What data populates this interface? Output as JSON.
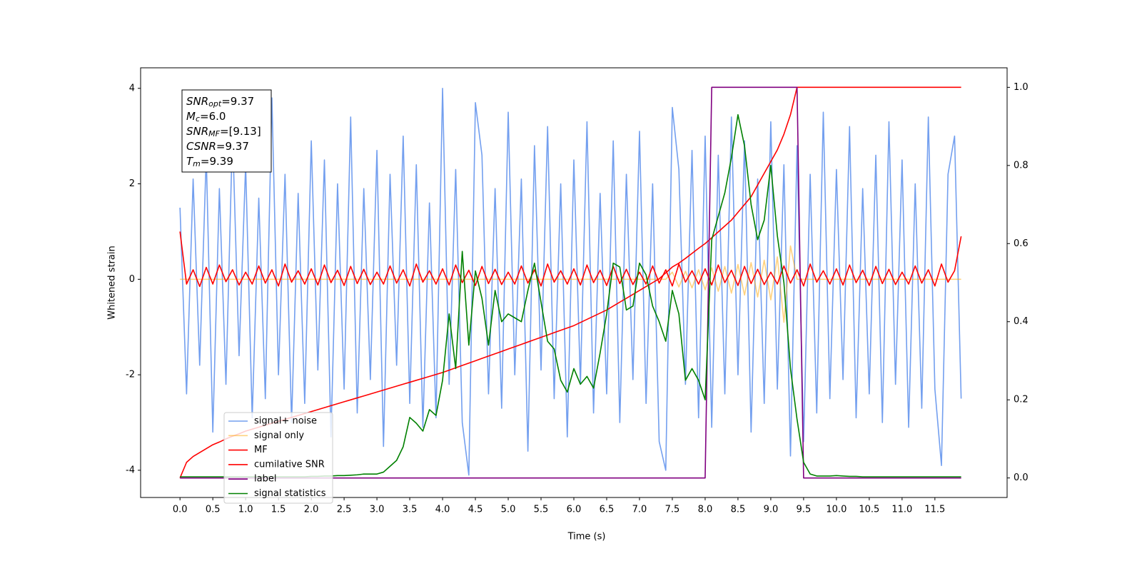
{
  "chart_data": {
    "type": "line",
    "xlabel": "Time (s)",
    "ylabel": "Whitened strain",
    "x": [
      0.0,
      0.1,
      0.2,
      0.3,
      0.4,
      0.5,
      0.6,
      0.7,
      0.8,
      0.9,
      1.0,
      1.1,
      1.2,
      1.3,
      1.4,
      1.5,
      1.6,
      1.7,
      1.8,
      1.9,
      2.0,
      2.1,
      2.2,
      2.3,
      2.4,
      2.5,
      2.6,
      2.7,
      2.8,
      2.9,
      3.0,
      3.1,
      3.2,
      3.3,
      3.4,
      3.5,
      3.6,
      3.7,
      3.8,
      3.9,
      4.0,
      4.1,
      4.2,
      4.3,
      4.4,
      4.5,
      4.6,
      4.7,
      4.8,
      4.9,
      5.0,
      5.1,
      5.2,
      5.3,
      5.4,
      5.5,
      5.6,
      5.7,
      5.8,
      5.9,
      6.0,
      6.1,
      6.2,
      6.3,
      6.4,
      6.5,
      6.6,
      6.7,
      6.8,
      6.9,
      7.0,
      7.1,
      7.2,
      7.3,
      7.4,
      7.5,
      7.6,
      7.7,
      7.8,
      7.9,
      8.0,
      8.1,
      8.2,
      8.3,
      8.4,
      8.5,
      8.6,
      8.7,
      8.8,
      8.9,
      9.0,
      9.1,
      9.2,
      9.3,
      9.4,
      9.5,
      9.6,
      9.7,
      9.8,
      9.9,
      10.0,
      10.1,
      10.2,
      10.3,
      10.4,
      10.5,
      10.6,
      10.7,
      10.8,
      10.9,
      11.0,
      11.1,
      11.2,
      11.3,
      11.4,
      11.5,
      11.6,
      11.7,
      11.8,
      11.9
    ],
    "series": [
      {
        "name": "signal+ noise",
        "color": "#6495ed",
        "alpha": 0.9,
        "values": [
          1.5,
          -2.4,
          2.1,
          -1.8,
          2.6,
          -3.2,
          1.9,
          -2.2,
          3.1,
          -1.6,
          2.4,
          -2.9,
          1.7,
          -2.5,
          3.8,
          -2.0,
          2.2,
          -3.0,
          1.8,
          -2.6,
          2.9,
          -1.9,
          2.5,
          -3.3,
          2.0,
          -2.3,
          3.4,
          -2.8,
          1.9,
          -2.1,
          2.7,
          -3.5,
          2.2,
          -1.8,
          3.0,
          -2.6,
          2.4,
          -3.1,
          1.6,
          -2.9,
          4.0,
          -2.2,
          2.3,
          -3.0,
          -4.1,
          3.7,
          2.6,
          -2.4,
          1.9,
          -2.7,
          3.5,
          -2.0,
          2.1,
          -3.6,
          2.8,
          -1.9,
          3.2,
          -2.5,
          2.0,
          -3.3,
          2.5,
          -2.2,
          3.3,
          -2.8,
          1.8,
          -2.4,
          2.9,
          -3.0,
          2.2,
          -2.1,
          3.1,
          -2.6,
          2.0,
          -3.4,
          -4.0,
          3.6,
          2.3,
          -2.2,
          2.7,
          -2.9,
          3.0,
          -3.1,
          2.6,
          -2.4,
          3.4,
          -2.0,
          2.9,
          -3.2,
          2.1,
          -2.6,
          3.3,
          -2.3,
          2.4,
          -3.7,
          2.8,
          -3.4,
          2.2,
          -2.8,
          3.5,
          -2.5,
          2.3,
          -2.1,
          3.2,
          -2.9,
          1.9,
          -2.4,
          2.6,
          -3.0,
          3.3,
          -2.2,
          2.5,
          -3.1,
          2.0,
          -2.7,
          3.4,
          -2.3,
          -3.9,
          2.2,
          3.0,
          -2.5
        ]
      },
      {
        "name": "signal only",
        "color": "#ffa500",
        "alpha": 0.5,
        "values": [
          0,
          0,
          0,
          0,
          0,
          0,
          0,
          0,
          0,
          0,
          0,
          0,
          0,
          0,
          0,
          0,
          0,
          0,
          0,
          0,
          0,
          0,
          0,
          0,
          0,
          0,
          0,
          0,
          0,
          0,
          0,
          0,
          0,
          0,
          0,
          0,
          0,
          0,
          0,
          0,
          0,
          0,
          0,
          0,
          0,
          0,
          0,
          0,
          0,
          0,
          0,
          0,
          0,
          0,
          0,
          0,
          0,
          0,
          0,
          0,
          0,
          0,
          0,
          0,
          0,
          0,
          0,
          0,
          0,
          0,
          0,
          0,
          0,
          0,
          0,
          0.15,
          -0.16,
          0.17,
          -0.18,
          0.2,
          -0.22,
          0.24,
          -0.25,
          0.27,
          -0.29,
          0.31,
          -0.33,
          0.35,
          -0.37,
          0.4,
          -0.43,
          0.47,
          -0.9,
          0.7,
          0,
          0,
          0,
          0,
          0,
          0,
          0,
          0,
          0,
          0,
          0,
          0,
          0,
          0,
          0,
          0,
          0,
          0,
          0,
          0,
          0,
          0,
          0,
          0,
          0,
          0
        ]
      },
      {
        "name": "MF",
        "color": "#ff0000",
        "alpha": 1,
        "values": [
          1.0,
          -0.1,
          0.2,
          -0.15,
          0.25,
          -0.1,
          0.3,
          -0.05,
          0.2,
          -0.12,
          0.15,
          -0.1,
          0.28,
          -0.08,
          0.2,
          -0.14,
          0.32,
          -0.06,
          0.18,
          -0.1,
          0.22,
          -0.12,
          0.3,
          -0.07,
          0.19,
          -0.13,
          0.27,
          -0.09,
          0.21,
          -0.11,
          0.15,
          -0.1,
          0.28,
          -0.08,
          0.2,
          -0.14,
          0.32,
          -0.06,
          0.18,
          -0.1,
          0.22,
          -0.12,
          0.3,
          -0.07,
          0.19,
          -0.13,
          0.27,
          -0.09,
          0.21,
          -0.11,
          0.15,
          -0.1,
          0.28,
          -0.08,
          0.2,
          -0.14,
          0.32,
          -0.06,
          0.18,
          -0.1,
          0.22,
          -0.12,
          0.3,
          -0.07,
          0.19,
          -0.13,
          0.27,
          -0.09,
          0.21,
          -0.11,
          0.15,
          -0.1,
          0.28,
          -0.08,
          0.2,
          -0.14,
          0.32,
          -0.06,
          0.18,
          -0.1,
          0.22,
          -0.12,
          0.3,
          -0.07,
          0.19,
          -0.13,
          0.27,
          -0.09,
          0.21,
          -0.11,
          0.15,
          -0.1,
          0.28,
          -0.08,
          0.2,
          -0.14,
          0.32,
          -0.06,
          0.18,
          -0.1,
          0.22,
          -0.12,
          0.3,
          -0.07,
          0.19,
          -0.13,
          0.27,
          -0.09,
          0.21,
          -0.11,
          0.15,
          -0.1,
          0.28,
          -0.08,
          0.2,
          -0.14,
          0.32,
          -0.06,
          0.18,
          0.9
        ]
      },
      {
        "name": "cumilative SNR",
        "color": "#ff0000",
        "alpha": 1,
        "axis": "y2",
        "values": [
          0.0,
          0.04,
          0.055,
          0.065,
          0.075,
          0.085,
          0.092,
          0.1,
          0.107,
          0.113,
          0.12,
          0.125,
          0.13,
          0.135,
          0.14,
          0.145,
          0.15,
          0.155,
          0.16,
          0.165,
          0.17,
          0.175,
          0.18,
          0.185,
          0.19,
          0.195,
          0.2,
          0.205,
          0.21,
          0.215,
          0.22,
          0.225,
          0.23,
          0.235,
          0.24,
          0.245,
          0.25,
          0.255,
          0.26,
          0.265,
          0.27,
          0.276,
          0.282,
          0.288,
          0.294,
          0.3,
          0.306,
          0.312,
          0.318,
          0.324,
          0.33,
          0.336,
          0.342,
          0.348,
          0.354,
          0.36,
          0.366,
          0.372,
          0.378,
          0.384,
          0.39,
          0.398,
          0.406,
          0.414,
          0.422,
          0.43,
          0.44,
          0.45,
          0.46,
          0.47,
          0.48,
          0.49,
          0.5,
          0.51,
          0.525,
          0.54,
          0.55,
          0.562,
          0.575,
          0.588,
          0.6,
          0.615,
          0.63,
          0.645,
          0.66,
          0.68,
          0.7,
          0.72,
          0.75,
          0.78,
          0.81,
          0.84,
          0.88,
          0.93,
          1.0,
          1.0,
          1.0,
          1.0,
          1.0,
          1.0,
          1.0,
          1.0,
          1.0,
          1.0,
          1.0,
          1.0,
          1.0,
          1.0,
          1.0,
          1.0,
          1.0,
          1.0,
          1.0,
          1.0,
          1.0,
          1.0,
          1.0,
          1.0,
          1.0,
          1.0
        ]
      },
      {
        "name": "label",
        "color": "#800080",
        "alpha": 1,
        "axis": "y2",
        "values": [
          0,
          0,
          0,
          0,
          0,
          0,
          0,
          0,
          0,
          0,
          0,
          0,
          0,
          0,
          0,
          0,
          0,
          0,
          0,
          0,
          0,
          0,
          0,
          0,
          0,
          0,
          0,
          0,
          0,
          0,
          0,
          0,
          0,
          0,
          0,
          0,
          0,
          0,
          0,
          0,
          0,
          0,
          0,
          0,
          0,
          0,
          0,
          0,
          0,
          0,
          0,
          0,
          0,
          0,
          0,
          0,
          0,
          0,
          0,
          0,
          0,
          0,
          0,
          0,
          0,
          0,
          0,
          0,
          0,
          0,
          0,
          0,
          0,
          0,
          0,
          0,
          0,
          0,
          0,
          0,
          0,
          1,
          1,
          1,
          1,
          1,
          1,
          1,
          1,
          1,
          1,
          1,
          1,
          1,
          1,
          0,
          0,
          0,
          0,
          0,
          0,
          0,
          0,
          0,
          0,
          0,
          0,
          0,
          0,
          0,
          0,
          0,
          0,
          0,
          0,
          0,
          0,
          0,
          0,
          0
        ]
      },
      {
        "name": "signal statistics",
        "color": "#008000",
        "alpha": 1,
        "axis": "y2",
        "values": [
          0.003,
          0.003,
          0.003,
          0.003,
          0.003,
          0.003,
          0.003,
          0.003,
          0.003,
          0.003,
          0.003,
          0.003,
          0.003,
          0.003,
          0.003,
          0.003,
          0.003,
          0.003,
          0.003,
          0.003,
          0.004,
          0.004,
          0.005,
          0.005,
          0.006,
          0.006,
          0.007,
          0.008,
          0.01,
          0.01,
          0.01,
          0.015,
          0.03,
          0.045,
          0.08,
          0.155,
          0.14,
          0.12,
          0.175,
          0.16,
          0.25,
          0.42,
          0.28,
          0.58,
          0.34,
          0.53,
          0.46,
          0.34,
          0.48,
          0.4,
          0.42,
          0.41,
          0.4,
          0.48,
          0.55,
          0.45,
          0.35,
          0.33,
          0.25,
          0.22,
          0.28,
          0.24,
          0.26,
          0.23,
          0.32,
          0.42,
          0.55,
          0.54,
          0.43,
          0.44,
          0.55,
          0.52,
          0.44,
          0.4,
          0.35,
          0.48,
          0.42,
          0.25,
          0.28,
          0.25,
          0.2,
          0.61,
          0.67,
          0.73,
          0.82,
          0.93,
          0.85,
          0.7,
          0.61,
          0.66,
          0.8,
          0.62,
          0.5,
          0.28,
          0.15,
          0.04,
          0.01,
          0.005,
          0.005,
          0.005,
          0.006,
          0.005,
          0.004,
          0.004,
          0.003,
          0.003,
          0.003,
          0.003,
          0.003,
          0.003,
          0.003,
          0.003,
          0.003,
          0.003,
          0.003,
          0.003,
          0.003,
          0.003,
          0.003,
          0.003
        ]
      }
    ],
    "xlim": [
      -0.6,
      12.6
    ],
    "ylim": [
      -4.57,
      4.43
    ],
    "y2lim": [
      -0.05,
      1.05
    ],
    "xticks": [
      {
        "value": 0,
        "label": "0.0"
      },
      0.5,
      {
        "value": 1,
        "label": "1.0"
      },
      1.5,
      {
        "value": 2,
        "label": "2.0"
      },
      2.5,
      {
        "value": 3,
        "label": "3.0"
      },
      3.5,
      {
        "value": 4,
        "label": "4.0"
      },
      4.5,
      {
        "value": 5,
        "label": "5.0"
      },
      5.5,
      {
        "value": 6,
        "label": "6.0"
      },
      6.5,
      {
        "value": 7,
        "label": "7.0"
      },
      7.5,
      {
        "value": 8,
        "label": "8.0"
      },
      8.5,
      {
        "value": 9,
        "label": "9.0"
      },
      9.5,
      {
        "value": 10,
        "label": "10.0"
      },
      10.5,
      {
        "value": 11,
        "label": "11.0"
      },
      11.5
    ],
    "yticks": [
      -4,
      -2,
      0,
      2,
      4
    ],
    "y2ticks": [
      {
        "value": 0,
        "label": "0.0"
      },
      0.2,
      0.4,
      0.6,
      0.8,
      {
        "value": 1,
        "label": "1.0"
      }
    ],
    "legend": "lower left",
    "annotation": [
      {
        "text": "SNR",
        "sub": "opt",
        "rest": "=9.37"
      },
      {
        "text": "M",
        "sub": "c",
        "rest": "=6.0"
      },
      {
        "text": "SNR",
        "sub": "MF",
        "rest": "=[9.13]"
      },
      {
        "text": "CSNR",
        "rest": "=9.37"
      },
      {
        "text": "T",
        "sub": "m",
        "rest": "=9.39"
      }
    ]
  }
}
